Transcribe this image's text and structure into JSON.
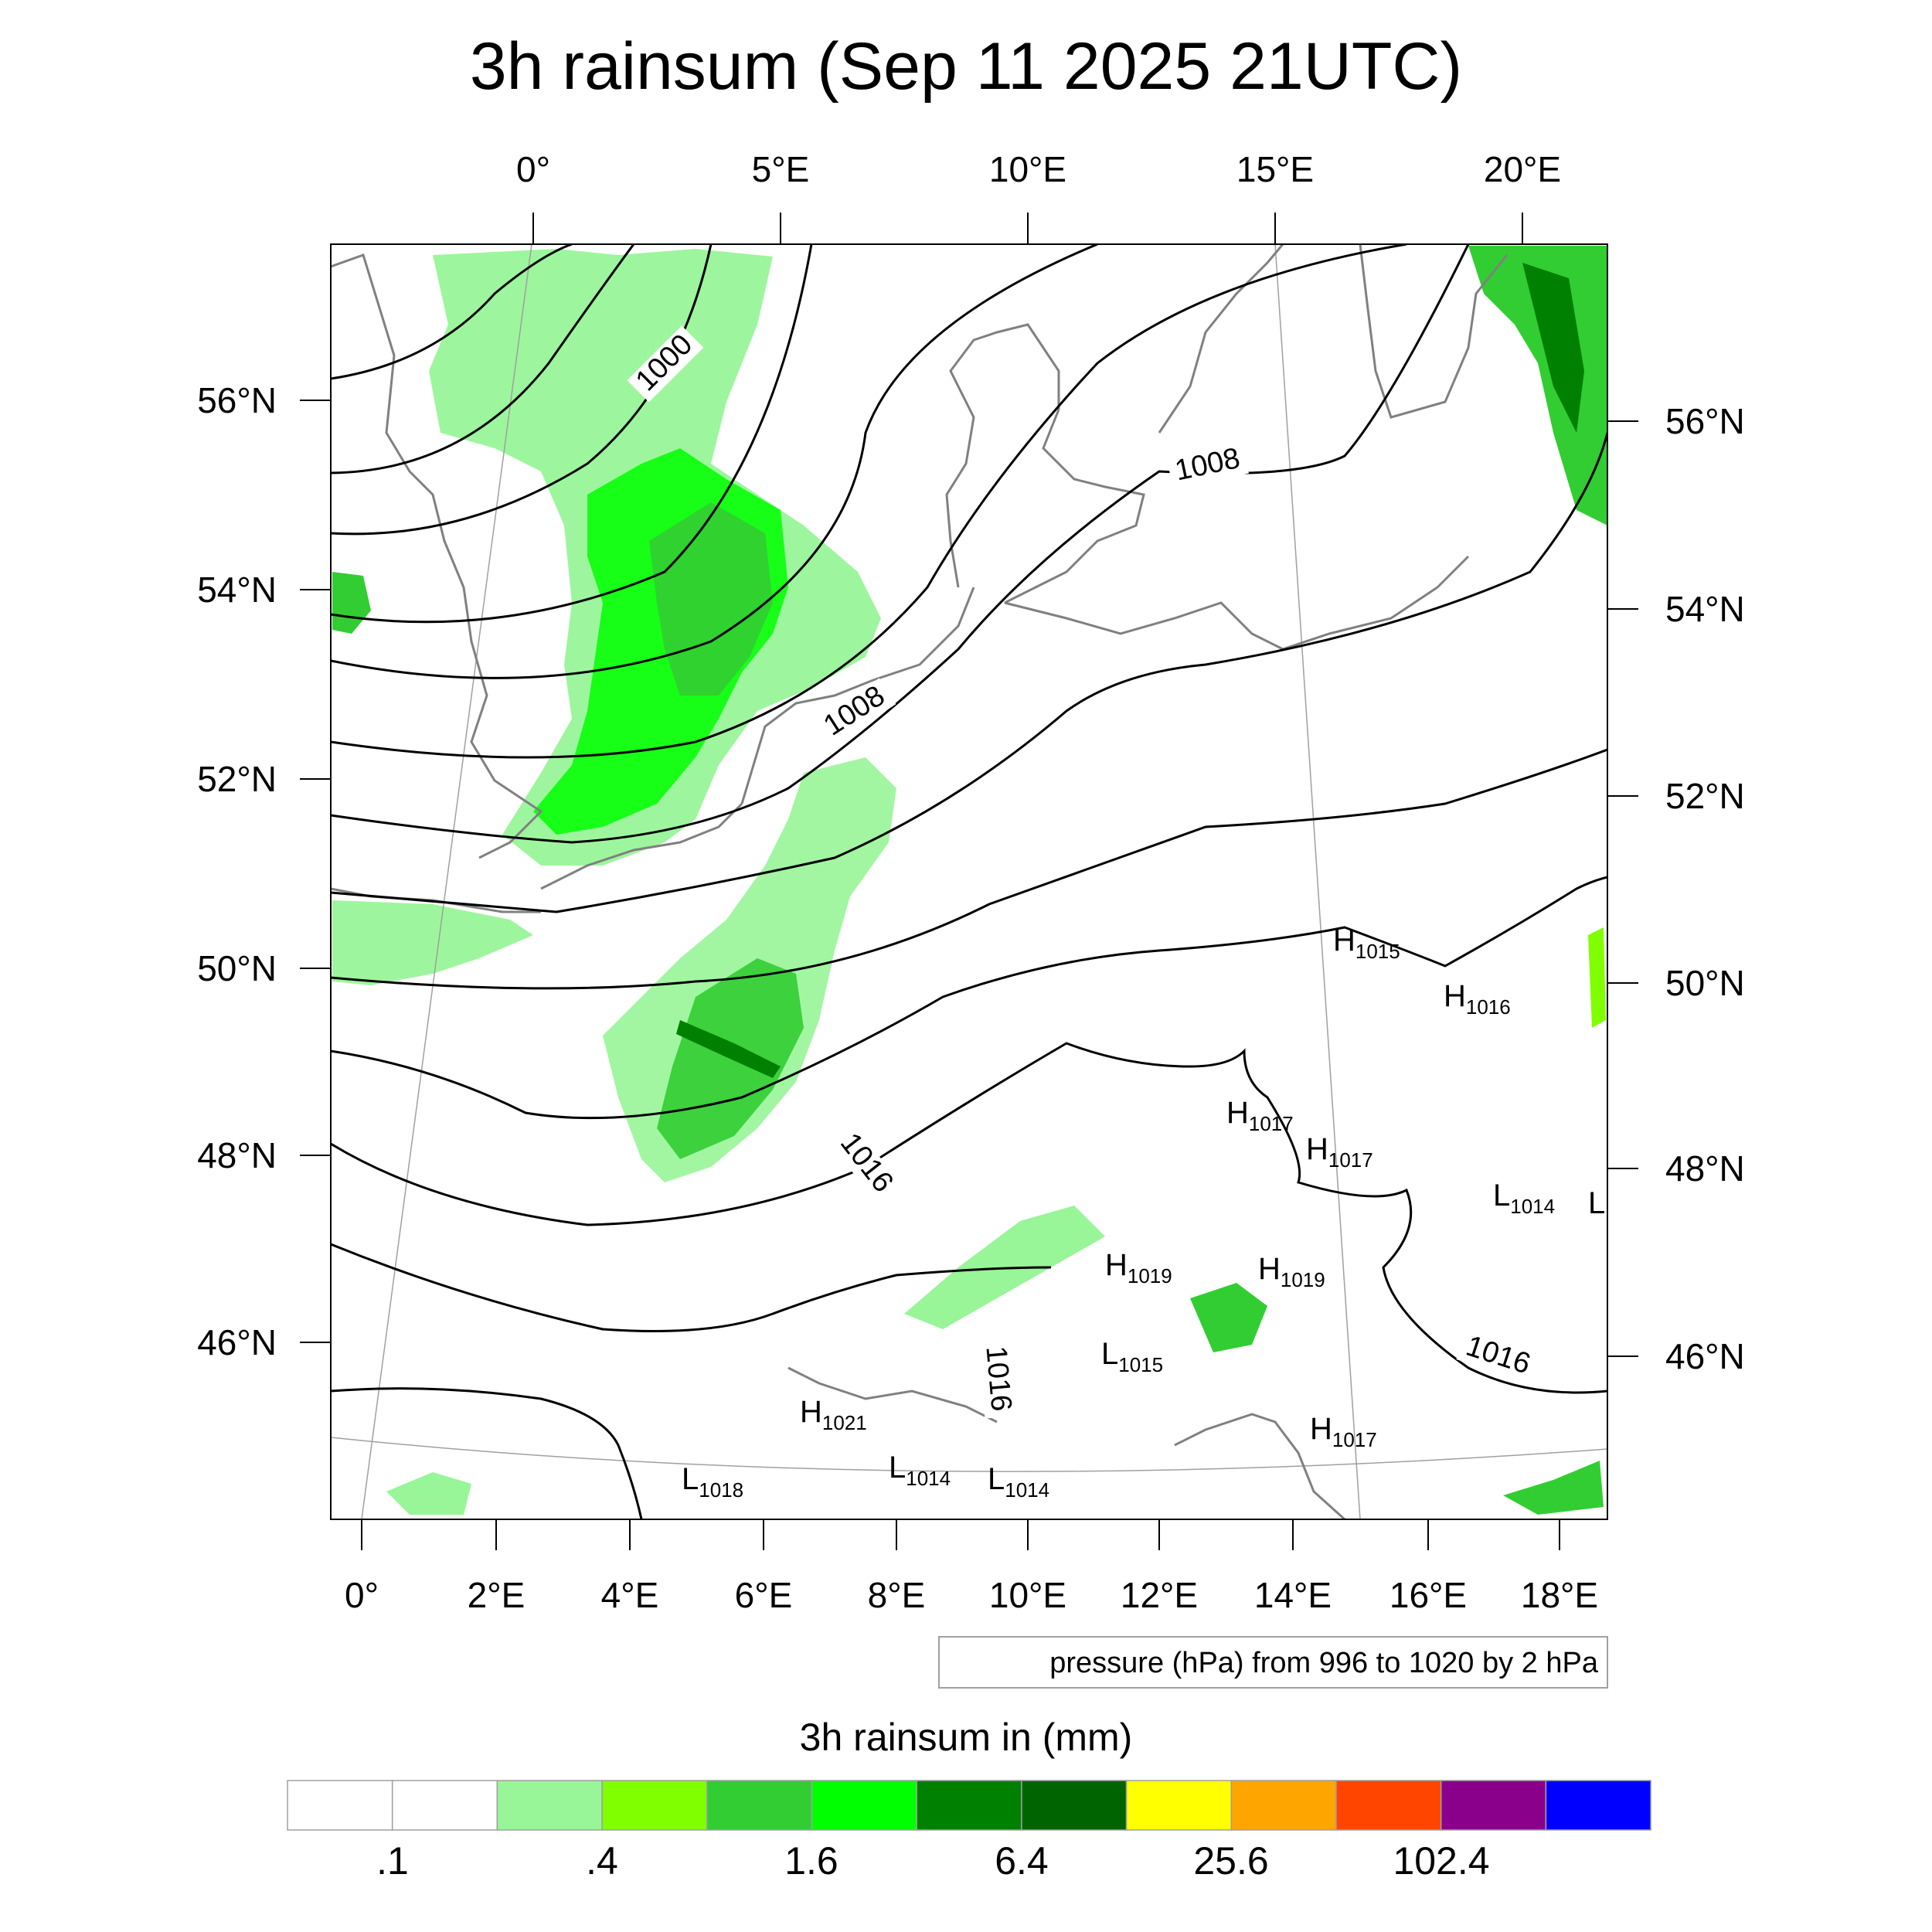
{
  "title": "3h rainsum (Sep 11 2025 21UTC)",
  "top_lon_ticks": [
    "0°",
    "5°E",
    "10°E",
    "15°E",
    "20°E"
  ],
  "bottom_lon_ticks": [
    "0°",
    "2°E",
    "4°E",
    "6°E",
    "8°E",
    "10°E",
    "12°E",
    "14°E",
    "16°E",
    "18°E"
  ],
  "left_lat_ticks": [
    "56°N",
    "54°N",
    "52°N",
    "50°N",
    "48°N",
    "46°N"
  ],
  "right_lat_ticks": [
    "56°N",
    "54°N",
    "52°N",
    "50°N",
    "48°N",
    "46°N"
  ],
  "contour_info": "pressure (hPa) from 996 to 1020 by 2 hPa",
  "colorbar": {
    "title": "3h rainsum in (mm)",
    "colors": [
      "#ffffff",
      "#ffffff",
      "#98f598",
      "#80ff00",
      "#32cd32",
      "#00ff00",
      "#008000",
      "#006400",
      "#ffff00",
      "#ffa500",
      "#ff4500",
      "#8b008b",
      "#0000ff"
    ],
    "labels": [
      ".1",
      ".4",
      "1.6",
      "6.4",
      "25.6",
      "102.4"
    ]
  },
  "isobar_labels": [
    "1000",
    "1008",
    "1008",
    "1016",
    "1016",
    "1016"
  ],
  "pressure_centers": [
    {
      "kind": "H",
      "value": "1015"
    },
    {
      "kind": "H",
      "value": "1016"
    },
    {
      "kind": "H",
      "value": "1017"
    },
    {
      "kind": "H",
      "value": "1017"
    },
    {
      "kind": "L",
      "value": "1014"
    },
    {
      "kind": "L",
      "value": ""
    },
    {
      "kind": "H",
      "value": "1019"
    },
    {
      "kind": "H",
      "value": "1019"
    },
    {
      "kind": "L",
      "value": "1015"
    },
    {
      "kind": "H",
      "value": "1021"
    },
    {
      "kind": "H",
      "value": "1017"
    },
    {
      "kind": "L",
      "value": "1018"
    },
    {
      "kind": "L",
      "value": "1014"
    },
    {
      "kind": "L",
      "value": "1014"
    }
  ],
  "legend_colors": {
    "coast": "#808080",
    "isobar": "#000000",
    "grid": "#a0a0a0"
  }
}
